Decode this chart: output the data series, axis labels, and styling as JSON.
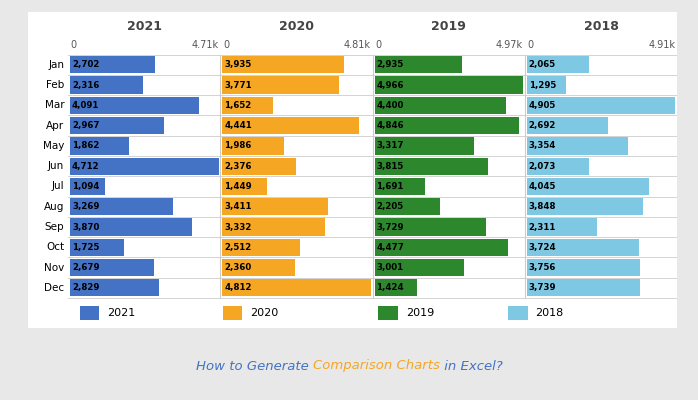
{
  "months": [
    "Jan",
    "Feb",
    "Mar",
    "Apr",
    "May",
    "Jun",
    "Jul",
    "Aug",
    "Sep",
    "Oct",
    "Nov",
    "Dec"
  ],
  "data_2021": [
    2702,
    2316,
    4091,
    2967,
    1862,
    4712,
    1094,
    3269,
    3870,
    1725,
    2679,
    2829
  ],
  "data_2020": [
    3935,
    3771,
    1652,
    4441,
    1986,
    2376,
    1449,
    3411,
    3332,
    2512,
    2360,
    4812
  ],
  "data_2019": [
    2935,
    4966,
    4400,
    4846,
    3317,
    3815,
    1691,
    2205,
    3729,
    4477,
    3001,
    1424
  ],
  "data_2018": [
    2065,
    1295,
    4905,
    2692,
    3354,
    2073,
    4045,
    3848,
    2311,
    3724,
    3756,
    3739
  ],
  "max_2021": 4710,
  "max_2020": 4810,
  "max_2019": 4970,
  "max_2018": 4910,
  "year_max_labels": [
    "4.71k",
    "4.81k",
    "4.97k",
    "4.91k"
  ],
  "color_2021": "#4472C4",
  "color_2020": "#F5A623",
  "color_2019": "#2D882D",
  "color_2018": "#7EC8E3",
  "bg_color": "#E8E8E8",
  "panel_bg": "#FFFFFF",
  "grid_color": "#CCCCCC",
  "label_color": "#555555",
  "title_parts": [
    "How to Generate ",
    "Comparison Charts",
    " in Excel?"
  ],
  "title_colors": [
    "#4472C4",
    "#F5A623",
    "#4472C4"
  ],
  "title_fontsize": 9.5,
  "year_title_fontsize": 9,
  "axis_label_fontsize": 7,
  "month_fontsize": 7.5,
  "bar_label_fontsize": 6.2,
  "legend_fontsize": 8
}
